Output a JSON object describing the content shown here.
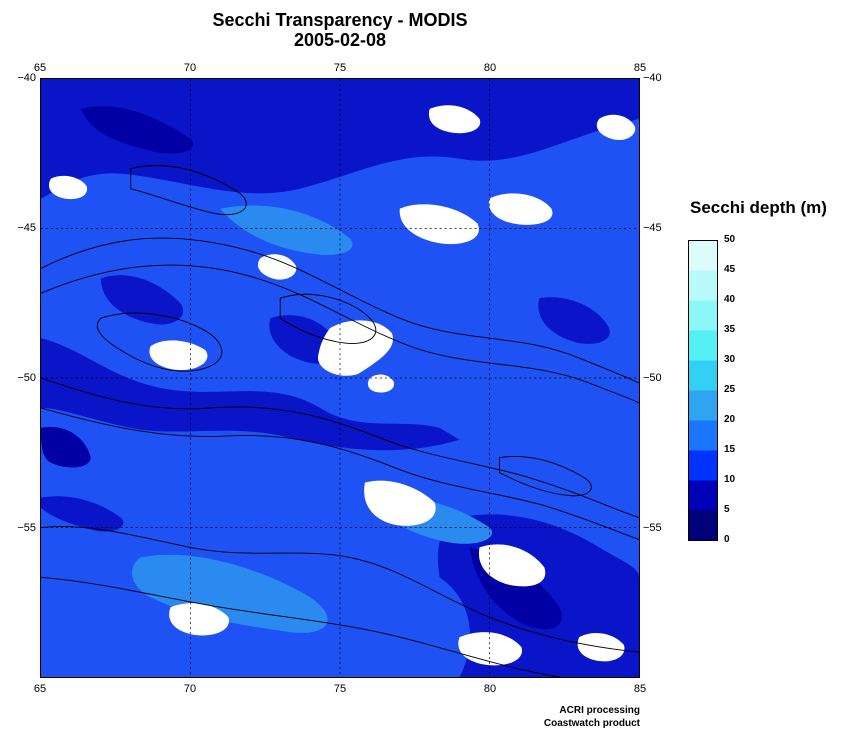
{
  "title": "Secchi Transparency - MODIS",
  "date": "2005-02-08",
  "x_ticks": [
    "65",
    "70",
    "75",
    "80",
    "85"
  ],
  "y_ticks": [
    "−40",
    "−45",
    "−50",
    "−55"
  ],
  "colorbar": {
    "title": "Secchi depth (m)",
    "labels": [
      "0",
      "5",
      "10",
      "15",
      "20",
      "25",
      "30",
      "35",
      "40",
      "45",
      "50"
    ],
    "colors": [
      "#00007a",
      "#0000b8",
      "#0033ff",
      "#1a75ff",
      "#2fa4f0",
      "#33cff5",
      "#55f0f5",
      "#8cf7f7",
      "#b8fafa",
      "#dcfcfc"
    ]
  },
  "credits": [
    "ACRI processing",
    "Coastwatch product"
  ],
  "map_colors": {
    "background": "#1f52f5",
    "deep": "#0a14c8",
    "darker": "#0000a5",
    "light": "#2a8af0",
    "cloud": "#ffffff",
    "contour": "#000000",
    "grid": "#000000"
  }
}
